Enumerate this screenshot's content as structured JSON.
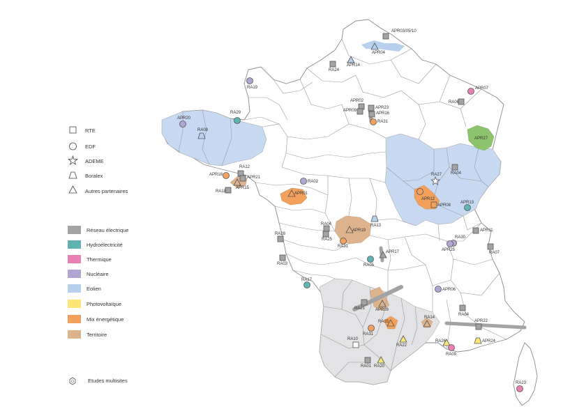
{
  "legend": {
    "partners": [
      {
        "label": "RTE",
        "shape": "square"
      },
      {
        "label": "EDF",
        "shape": "circle"
      },
      {
        "label": "ADEME",
        "shape": "star"
      },
      {
        "label": "Boralex",
        "shape": "trapezoid"
      },
      {
        "label": "Autres partenaires",
        "shape": "triangle"
      }
    ],
    "themes": [
      {
        "label": "Réseau électrique",
        "color": "#a3a3a3"
      },
      {
        "label": "Hydroélectricité",
        "color": "#5fb3b3"
      },
      {
        "label": "Thermique",
        "color": "#ea7fb4"
      },
      {
        "label": "Nucléaire",
        "color": "#b1a6d3"
      },
      {
        "label": "Eolien",
        "color": "#b6d0ee"
      },
      {
        "label": "Photovoltaïque",
        "color": "#fde575"
      },
      {
        "label": "Mix énergétique",
        "color": "#f2a05c"
      },
      {
        "label": "Territoire",
        "color": "#ddb38e"
      }
    ],
    "multisite": {
      "label": "Etudes multisites",
      "icon": "hexagon-icon"
    }
  },
  "markers": [
    {
      "label": "APR03/05/10",
      "theme": "Réseau électrique",
      "shape": "square"
    },
    {
      "label": "APR04",
      "theme": "Eolien",
      "shape": "triangle"
    },
    {
      "label": "APR14",
      "theme": "Eolien",
      "shape": "triangle"
    },
    {
      "label": "RA24",
      "theme": "Réseau électrique",
      "shape": "square"
    },
    {
      "label": "RA19",
      "theme": "Nucléaire",
      "shape": "circle"
    },
    {
      "label": "APR07",
      "theme": "Thermique",
      "shape": "circle"
    },
    {
      "label": "RA06",
      "theme": "Réseau électrique",
      "shape": "square"
    },
    {
      "label": "APR27",
      "theme": "Mix énergétique"
    },
    {
      "label": "APR02",
      "theme": "Réseau électrique",
      "shape": "square"
    },
    {
      "label": "APR09",
      "theme": "Réseau électrique",
      "shape": "square"
    },
    {
      "label": "APR23",
      "theme": "Réseau électrique",
      "shape": "square"
    },
    {
      "label": "APR16",
      "theme": "Réseau électrique",
      "shape": "square"
    },
    {
      "label": "RA31",
      "theme": "Mix énergétique",
      "shape": "circle"
    },
    {
      "label": "APR20",
      "theme": "Nucléaire",
      "shape": "circle"
    },
    {
      "label": "RA29",
      "theme": "Hydroélectricité",
      "shape": "circle"
    },
    {
      "label": "RA08",
      "theme": "Eolien",
      "shape": "trapezoid"
    },
    {
      "label": "RA12",
      "theme": "Réseau électrique",
      "shape": "square"
    },
    {
      "label": "APR18",
      "theme": "Mix énergétique",
      "shape": "circle"
    },
    {
      "label": "APR21",
      "theme": "Réseau électrique",
      "shape": "square"
    },
    {
      "label": "APR15",
      "theme": "Territoire",
      "shape": "triangle"
    },
    {
      "label": "RA18",
      "theme": "Réseau électrique",
      "shape": "square"
    },
    {
      "label": "RA02",
      "theme": "Nucléaire",
      "shape": "circle"
    },
    {
      "label": "APR01",
      "theme": "Mix énergétique",
      "shape": "triangle"
    },
    {
      "label": "RA27",
      "theme": "Eolien",
      "shape": "star"
    },
    {
      "label": "RA04",
      "theme": "Réseau électrique",
      "shape": "square"
    },
    {
      "label": "APR12",
      "theme": "Mix énergétique",
      "shape": "circle"
    },
    {
      "label": "APR08",
      "theme": "Mix énergétique",
      "shape": "square"
    },
    {
      "label": "APR13",
      "theme": "Hydroélectricité",
      "shape": "circle"
    },
    {
      "label": "RA04",
      "theme": "Réseau électrique",
      "shape": "square"
    },
    {
      "label": "RA25",
      "theme": "Réseau électrique",
      "shape": "square"
    },
    {
      "label": "RA31",
      "theme": "Mix énergétique",
      "shape": "circle"
    },
    {
      "label": "APR19",
      "theme": "Territoire",
      "shape": "triangle"
    },
    {
      "label": "RA13",
      "theme": "Eolien",
      "shape": "trapezoid"
    },
    {
      "label": "RA28",
      "theme": "Réseau électrique",
      "shape": "square"
    },
    {
      "label": "APR11",
      "theme": "Réseau électrique",
      "shape": "square"
    },
    {
      "label": "RA30",
      "theme": "Nucléaire",
      "shape": "circle"
    },
    {
      "label": "APR25",
      "theme": "Nucléaire",
      "shape": "circle"
    },
    {
      "label": "RA07",
      "theme": "Réseau électrique",
      "shape": "square"
    },
    {
      "label": "APR17",
      "theme": "Réseau électrique",
      "shape": "triangle"
    },
    {
      "label": "RA05",
      "theme": "Hydroélectricité",
      "shape": "circle"
    },
    {
      "label": "RA03",
      "theme": "Réseau électrique",
      "shape": "square"
    },
    {
      "label": "RA17",
      "theme": "Hydroélectricité",
      "shape": "circle"
    },
    {
      "label": "APR06",
      "theme": "Nucléaire",
      "shape": "circle"
    },
    {
      "label": "RA21",
      "theme": "Réseau électrique",
      "shape": "square"
    },
    {
      "label": "APR26",
      "theme": "Territoire",
      "shape": "triangle"
    },
    {
      "label": "RA04",
      "theme": "Réseau électrique",
      "shape": "square"
    },
    {
      "label": "RA14",
      "theme": "Territoire",
      "shape": "triangle"
    },
    {
      "label": "APR22",
      "theme": "Réseau électrique",
      "shape": "square"
    },
    {
      "label": "RA15",
      "theme": "Mix énergétique",
      "shape": "triangle"
    },
    {
      "label": "RA31",
      "theme": "Mix énergétique",
      "shape": "circle"
    },
    {
      "label": "RA22",
      "theme": "Photovoltaïque",
      "shape": "triangle"
    },
    {
      "label": "RA26",
      "theme": "Photovoltaïque",
      "shape": "triangle"
    },
    {
      "label": "APR24",
      "theme": "Photovoltaïque",
      "shape": "trapezoid"
    },
    {
      "label": "RA09",
      "theme": "Thermique",
      "shape": "circle"
    },
    {
      "label": "RA10",
      "theme": "RTE",
      "shape": "square"
    },
    {
      "label": "RA01",
      "theme": "Réseau électrique",
      "shape": "square"
    },
    {
      "label": "RA20",
      "theme": "Photovoltaïque",
      "shape": "triangle"
    },
    {
      "label": "RA23",
      "theme": "Thermique",
      "shape": "circle"
    }
  ]
}
